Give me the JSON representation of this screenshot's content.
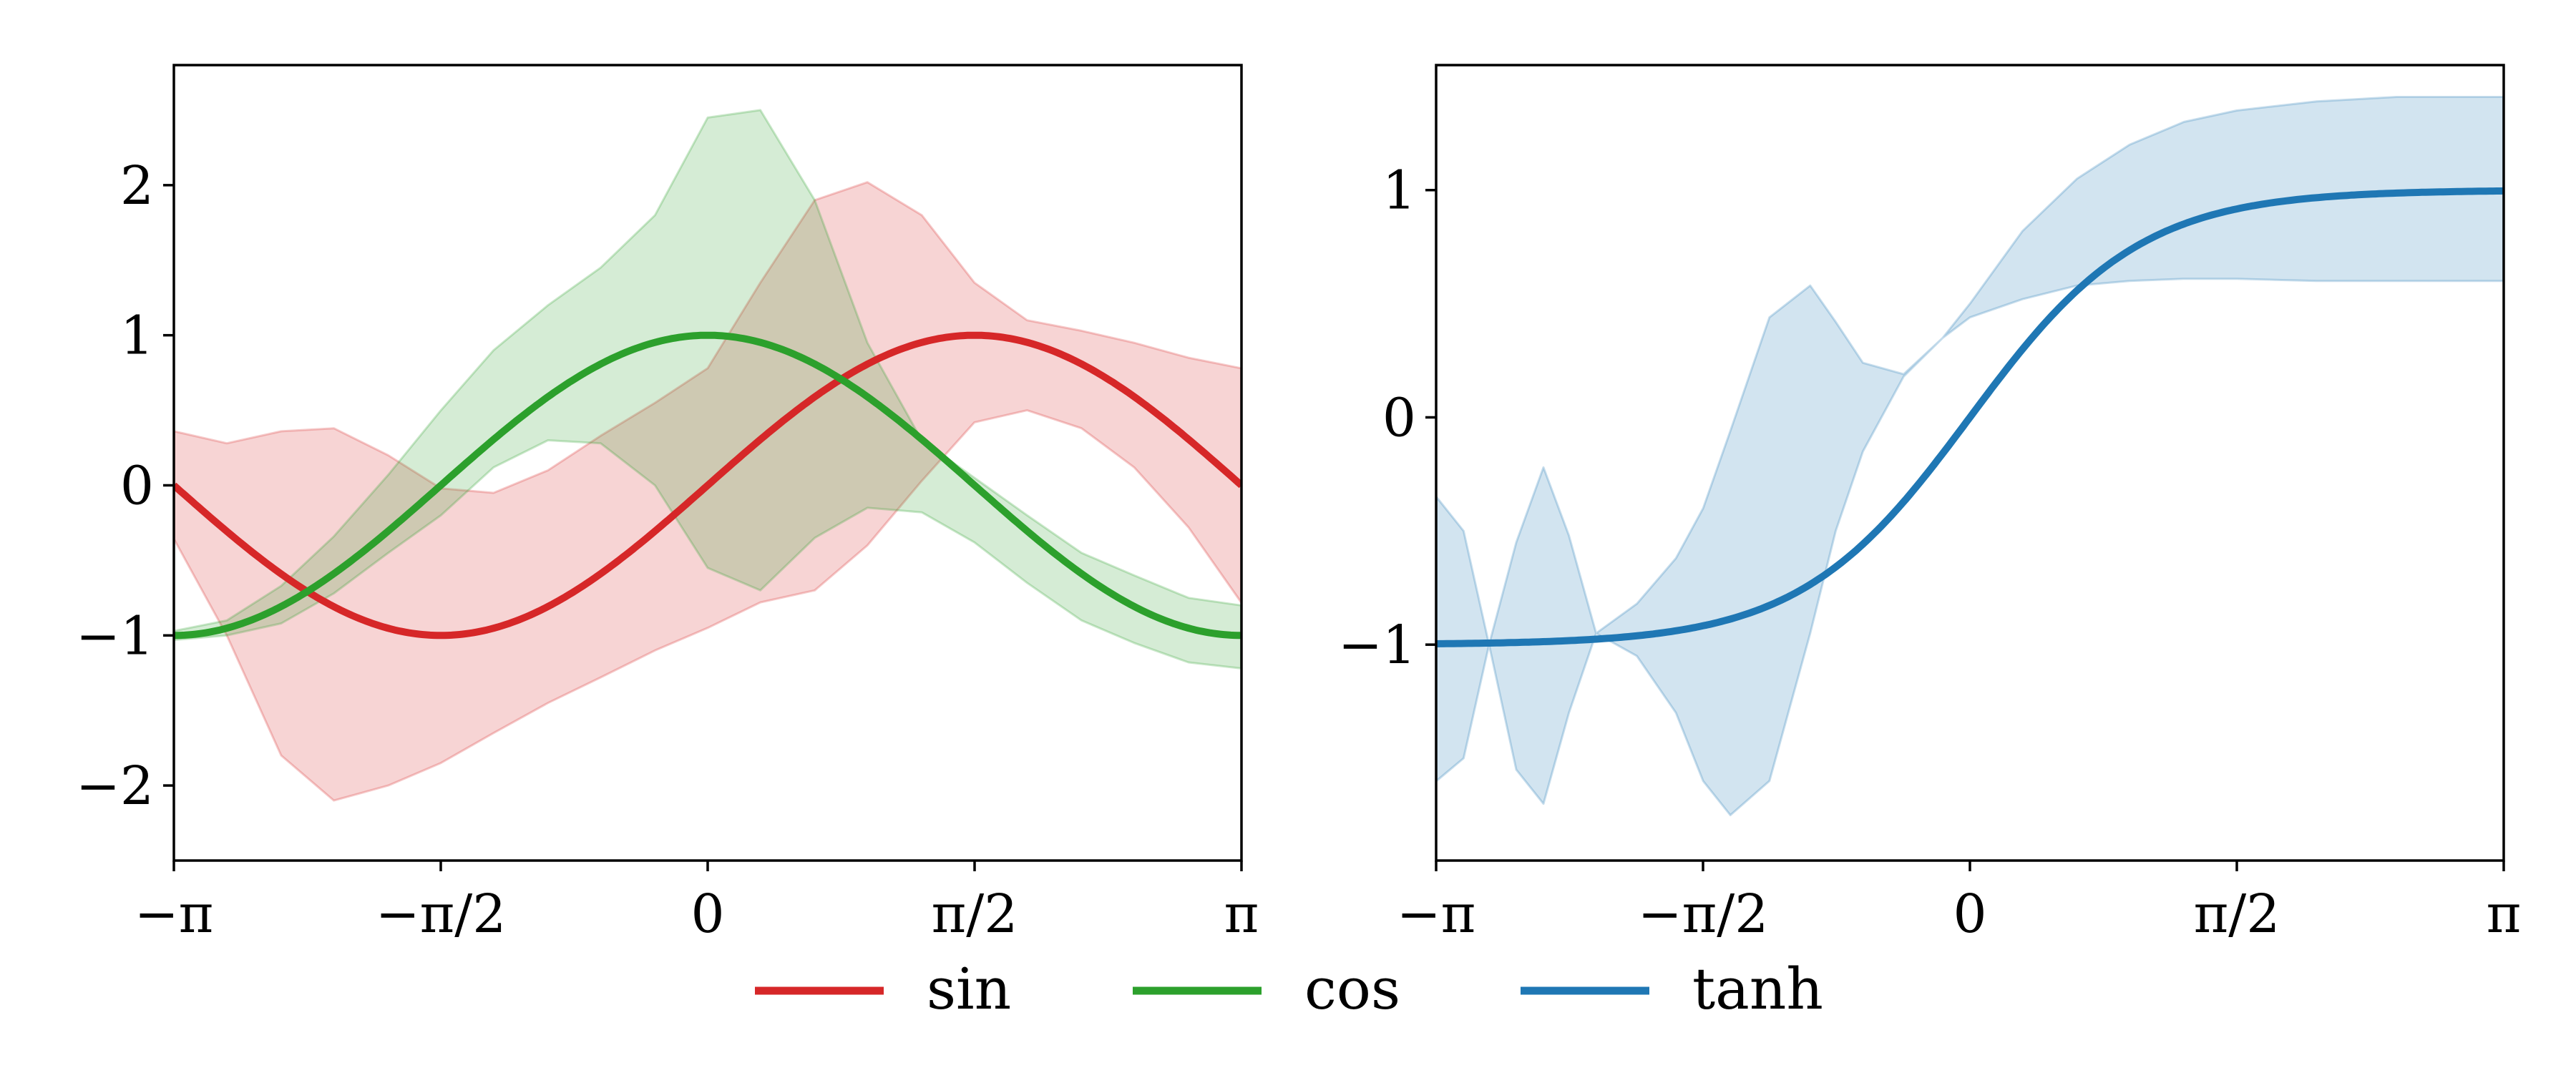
{
  "chart_data": [
    {
      "type": "line",
      "panel": "left",
      "xlim": [
        -3.14159,
        3.14159
      ],
      "ylim": [
        -2.5,
        2.8
      ],
      "x_ticks": [
        {
          "value": -3.14159,
          "label": "−π"
        },
        {
          "value": -1.5708,
          "label": "−π/2"
        },
        {
          "value": 0,
          "label": "0"
        },
        {
          "value": 1.5708,
          "label": "π/2"
        },
        {
          "value": 3.14159,
          "label": "π"
        }
      ],
      "y_ticks": [
        {
          "value": -2,
          "label": "−2"
        },
        {
          "value": -1,
          "label": "−1"
        },
        {
          "value": 0,
          "label": "0"
        },
        {
          "value": 1,
          "label": "1"
        },
        {
          "value": 2,
          "label": "2"
        }
      ],
      "series": [
        {
          "name": "sin",
          "color": "#d62728",
          "function": "sin",
          "band": {
            "x": [
              -3.14,
              -2.83,
              -2.51,
              -2.2,
              -1.88,
              -1.57,
              -1.26,
              -0.94,
              -0.63,
              -0.31,
              0,
              0.31,
              0.63,
              0.94,
              1.26,
              1.57,
              1.88,
              2.2,
              2.51,
              2.83,
              3.14
            ],
            "upper": [
              0.36,
              0.28,
              0.36,
              0.38,
              0.2,
              -0.02,
              -0.05,
              0.1,
              0.33,
              0.55,
              0.78,
              1.35,
              1.9,
              2.02,
              1.8,
              1.35,
              1.1,
              1.03,
              0.95,
              0.85,
              0.78
            ],
            "lower": [
              -0.36,
              -1.0,
              -1.8,
              -2.1,
              -2.0,
              -1.85,
              -1.65,
              -1.45,
              -1.28,
              -1.1,
              -0.95,
              -0.78,
              -0.7,
              -0.4,
              0.03,
              0.42,
              0.5,
              0.38,
              0.12,
              -0.28,
              -0.78
            ]
          }
        },
        {
          "name": "cos",
          "color": "#2ca02c",
          "function": "cos",
          "band": {
            "x": [
              -3.14,
              -2.83,
              -2.51,
              -2.2,
              -1.88,
              -1.57,
              -1.26,
              -0.94,
              -0.63,
              -0.31,
              0,
              0.31,
              0.63,
              0.94,
              1.26,
              1.57,
              1.88,
              2.2,
              2.51,
              2.83,
              3.14
            ],
            "upper": [
              -0.97,
              -0.9,
              -0.67,
              -0.34,
              0.07,
              0.5,
              0.9,
              1.2,
              1.45,
              1.8,
              2.45,
              2.5,
              1.9,
              0.95,
              0.3,
              0.05,
              -0.2,
              -0.45,
              -0.6,
              -0.75,
              -0.8
            ],
            "lower": [
              -1.03,
              -1.0,
              -0.92,
              -0.72,
              -0.45,
              -0.2,
              0.12,
              0.3,
              0.28,
              0.0,
              -0.55,
              -0.7,
              -0.35,
              -0.15,
              -0.18,
              -0.38,
              -0.65,
              -0.9,
              -1.05,
              -1.18,
              -1.22
            ]
          }
        }
      ]
    },
    {
      "type": "line",
      "panel": "right",
      "xlim": [
        -3.14159,
        3.14159
      ],
      "ylim": [
        -1.95,
        1.55
      ],
      "x_ticks": [
        {
          "value": -3.14159,
          "label": "−π"
        },
        {
          "value": -1.5708,
          "label": "−π/2"
        },
        {
          "value": 0,
          "label": "0"
        },
        {
          "value": 1.5708,
          "label": "π/2"
        },
        {
          "value": 3.14159,
          "label": "π"
        }
      ],
      "y_ticks": [
        {
          "value": -1,
          "label": "−1"
        },
        {
          "value": 0,
          "label": "0"
        },
        {
          "value": 1,
          "label": "1"
        }
      ],
      "series": [
        {
          "name": "tanh",
          "color": "#1f77b4",
          "function": "tanh",
          "band": {
            "x": [
              -3.14,
              -2.98,
              -2.83,
              -2.67,
              -2.51,
              -2.36,
              -2.2,
              -1.96,
              -1.73,
              -1.57,
              -1.41,
              -1.18,
              -0.94,
              -0.79,
              -0.63,
              -0.39,
              -0.16,
              0,
              0.31,
              0.63,
              0.94,
              1.26,
              1.57,
              2.04,
              2.51,
              2.83,
              3.14
            ],
            "upper": [
              -0.35,
              -0.5,
              -1.0,
              -0.55,
              -0.22,
              -0.52,
              -0.95,
              -0.82,
              -0.62,
              -0.4,
              -0.06,
              0.44,
              0.58,
              0.42,
              0.24,
              0.19,
              0.35,
              0.5,
              0.82,
              1.05,
              1.2,
              1.3,
              1.35,
              1.39,
              1.41,
              1.41,
              1.41
            ],
            "lower": [
              -1.6,
              -1.5,
              -1.0,
              -1.55,
              -1.7,
              -1.3,
              -0.95,
              -1.05,
              -1.3,
              -1.6,
              -1.75,
              -1.6,
              -0.95,
              -0.5,
              -0.15,
              0.18,
              0.35,
              0.44,
              0.52,
              0.58,
              0.6,
              0.61,
              0.61,
              0.6,
              0.6,
              0.6,
              0.6
            ]
          }
        }
      ]
    }
  ],
  "legend": {
    "placement": "bottom-center",
    "entries": [
      {
        "label": "sin",
        "color": "#d62728"
      },
      {
        "label": "cos",
        "color": "#2ca02c"
      },
      {
        "label": "tanh",
        "color": "#1f77b4"
      }
    ]
  }
}
